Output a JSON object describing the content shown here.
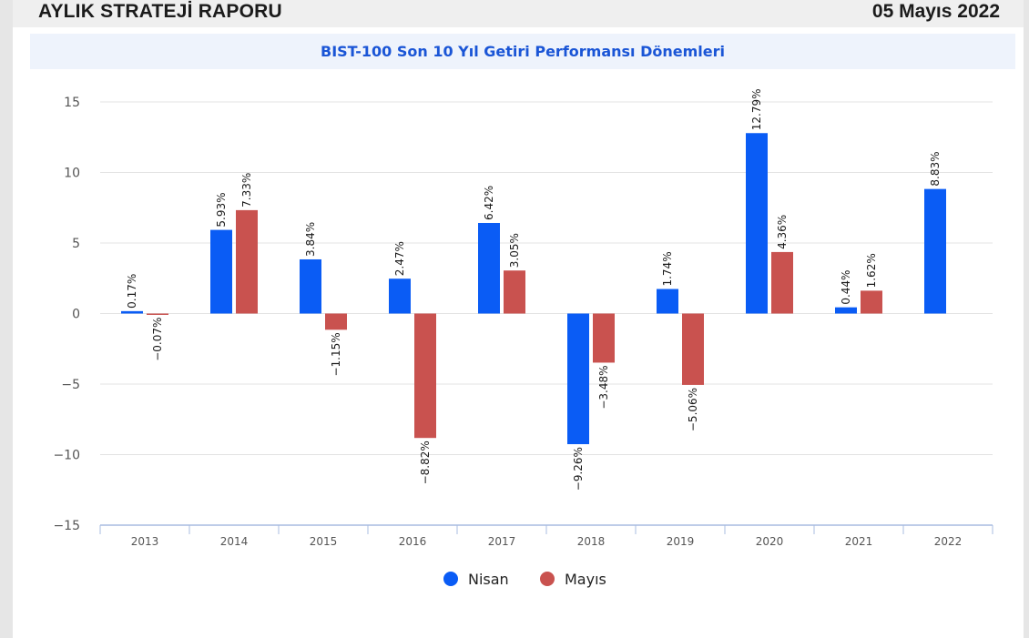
{
  "header": {
    "title": "AYLIK STRATEJİ RAPORU",
    "date": "05 Mayıs 2022"
  },
  "chart_data": {
    "type": "bar",
    "title": "BIST-100 Son 10 Yıl Getiri Performansı Dönemleri",
    "categories": [
      "2013",
      "2014",
      "2015",
      "2016",
      "2017",
      "2018",
      "2019",
      "2020",
      "2021",
      "2022"
    ],
    "series": [
      {
        "name": "Nisan",
        "color": "#0a5cf5",
        "values": [
          0.17,
          5.93,
          3.84,
          2.47,
          6.42,
          -9.26,
          1.74,
          12.79,
          0.44,
          8.83
        ],
        "labels": [
          "0.17%",
          "5.93%",
          "3.84%",
          "2.47%",
          "6.42%",
          "−9.26%",
          "1.74%",
          "12.79%",
          "0.44%",
          "8.83%"
        ]
      },
      {
        "name": "Mayıs",
        "color": "#c9524f",
        "values": [
          -0.07,
          7.33,
          -1.15,
          -8.82,
          3.05,
          -3.48,
          -5.06,
          4.36,
          1.62,
          null
        ],
        "labels": [
          "−0.07%",
          "7.33%",
          "−1.15%",
          "−8.82%",
          "3.05%",
          "−3.48%",
          "−5.06%",
          "4.36%",
          "1.62%",
          null
        ]
      }
    ],
    "yticks": [
      "15",
      "10",
      "5",
      "0",
      "−5",
      "−10",
      "−15"
    ],
    "ylim": [
      -15,
      15
    ],
    "grid": true,
    "legend": "bottom-center"
  }
}
